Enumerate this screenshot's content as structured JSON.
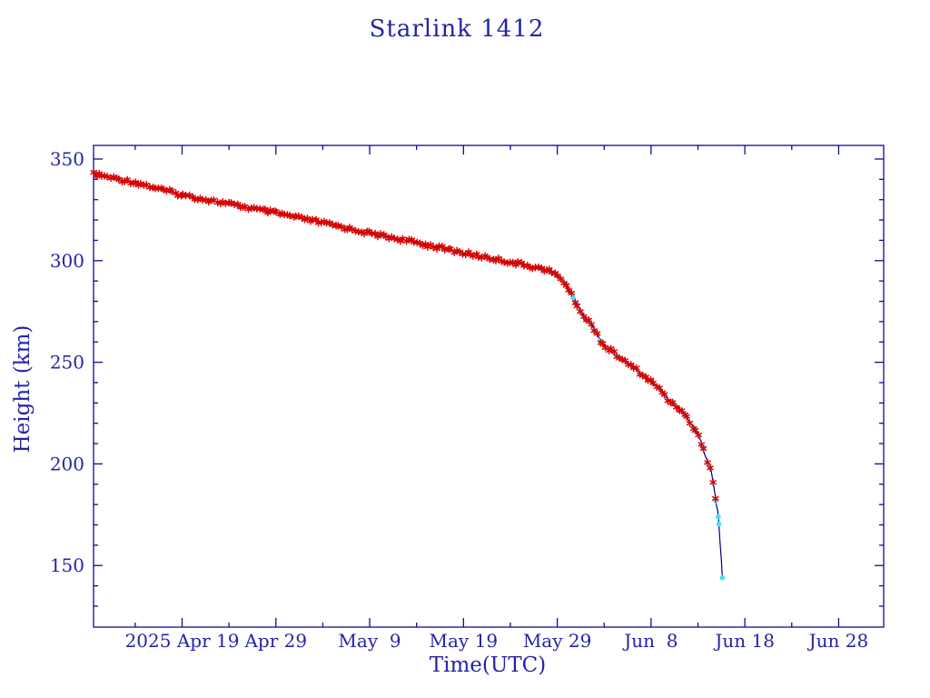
{
  "page": {
    "background_color": "#ffffff"
  },
  "chart_data": {
    "type": "line",
    "title": "Starlink 1412",
    "xlabel": "Time(UTC)",
    "ylabel": "Height (km)",
    "legend": "none",
    "grid": "off",
    "frame_color": "#0d0d96",
    "text_color": "#2424a8",
    "x_axis": {
      "unit": "days relative to 2025 Apr 19",
      "range_days": [
        -9.44,
        74.8
      ],
      "major_ticks": [
        {
          "day": 0,
          "label": "2025 Apr 19"
        },
        {
          "day": 10,
          "label": "Apr 29"
        },
        {
          "day": 20,
          "label": "May  9"
        },
        {
          "day": 30,
          "label": "May 19"
        },
        {
          "day": 40,
          "label": "May 29"
        },
        {
          "day": 50,
          "label": "Jun  8"
        },
        {
          "day": 60,
          "label": "Jun 18"
        },
        {
          "day": 70,
          "label": "Jun 28"
        }
      ],
      "minor_tick_days": [
        -5,
        5,
        15,
        25,
        35,
        45,
        55,
        65
      ]
    },
    "y_axis": {
      "unit": "km",
      "range_km": [
        119.7,
        356.7
      ],
      "major_ticks": [
        {
          "km": 150,
          "label": "150"
        },
        {
          "km": 200,
          "label": "200"
        },
        {
          "km": 250,
          "label": "250"
        },
        {
          "km": 300,
          "label": "300"
        },
        {
          "km": 350,
          "label": "350"
        }
      ],
      "minor_tick_km": [
        130,
        140,
        160,
        170,
        180,
        190,
        210,
        220,
        230,
        240,
        260,
        270,
        280,
        290,
        310,
        320,
        330,
        340
      ]
    },
    "series": [
      {
        "name": "decay-curve",
        "type": "line",
        "color": "#000080",
        "points_day_km": [
          [
            -9.44,
            342.6
          ],
          [
            -5,
            338.5
          ],
          [
            0,
            332.3
          ],
          [
            5,
            327.9
          ],
          [
            10,
            323.4
          ],
          [
            15,
            318.6
          ],
          [
            20,
            313.5
          ],
          [
            25,
            308.9
          ],
          [
            30,
            303.8
          ],
          [
            34,
            300.2
          ],
          [
            37,
            297.4
          ],
          [
            39,
            295.3
          ],
          [
            40.3,
            291.8
          ],
          [
            40.9,
            288.4
          ],
          [
            41.9,
            280.0
          ],
          [
            42.9,
            271.9
          ],
          [
            43.5,
            269.5
          ],
          [
            44.2,
            264.4
          ],
          [
            44.6,
            260.7
          ],
          [
            45.1,
            257.7
          ],
          [
            45.8,
            255.5
          ],
          [
            46.4,
            253.3
          ],
          [
            47.4,
            249.6
          ],
          [
            48.4,
            246.6
          ],
          [
            49.3,
            242.9
          ],
          [
            50.4,
            239.2
          ],
          [
            51.3,
            234.7
          ],
          [
            51.9,
            231.0
          ],
          [
            52.9,
            228.0
          ],
          [
            53.8,
            222.8
          ],
          [
            54.8,
            216.1
          ],
          [
            55.3,
            211.6
          ],
          [
            55.7,
            204.9
          ],
          [
            56.1,
            200.4
          ],
          [
            56.4,
            196.7
          ],
          [
            56.6,
            191.5
          ],
          [
            56.8,
            185.6
          ],
          [
            56.95,
            180.0
          ],
          [
            57.1,
            177.0
          ],
          [
            57.2,
            172.6
          ],
          [
            57.35,
            161.5
          ],
          [
            57.5,
            152.5
          ],
          [
            57.6,
            144.0
          ]
        ]
      },
      {
        "name": "tle-observations",
        "type": "asterisk-markers",
        "color": "#d90000",
        "follows": "decay-curve",
        "start_day": -9.44,
        "end_day": 57.12,
        "spacing_days": 0.3,
        "scatter_km": 0.9,
        "marker_size_px": 7
      },
      {
        "name": "predicted-points",
        "type": "dot-markers",
        "color": "#3fe4ef",
        "follows": "decay-curve",
        "dot_radius_px": 2.8,
        "days": [
          -6.5,
          -4.2,
          -2.0,
          0.3,
          1.2,
          3.1,
          4.4,
          5.8,
          7.4,
          9.0,
          10.3,
          11.5,
          13.2,
          15.8,
          17.4,
          19.2,
          21.3,
          23.5,
          25.4,
          27.6,
          29.3,
          31.1,
          33.4,
          35.2,
          36.8,
          38.3,
          39.2,
          39.7,
          40.1,
          40.5,
          40.9,
          41.3,
          41.7,
          42.1,
          42.5,
          42.9,
          43.4,
          44.0,
          44.6,
          45.3,
          46.1,
          47.0,
          48.0,
          49.0,
          50.2,
          51.4,
          52.5,
          53.6,
          54.6,
          55.5,
          56.2,
          56.9,
          57.17,
          57.23,
          57.6
        ]
      }
    ],
    "last_point_day_km": [
      57.6,
      144.0
    ]
  }
}
